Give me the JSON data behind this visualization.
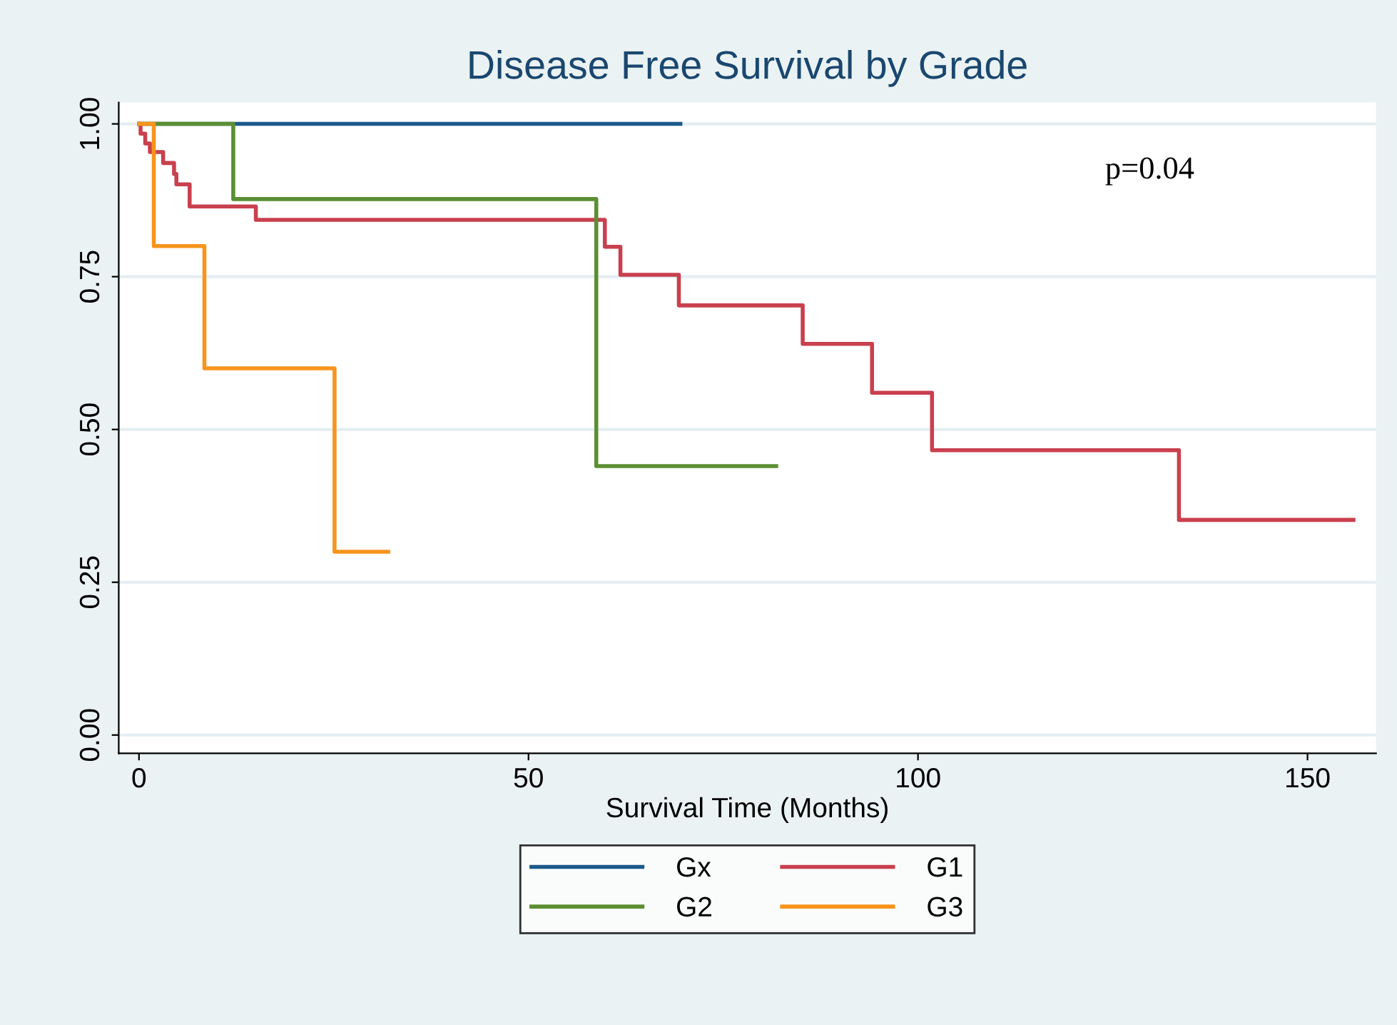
{
  "chart_data": {
    "type": "step",
    "title": "Disease Free Survival by Grade",
    "xlabel": "Survival Time (Months)",
    "xlim": [
      -2.6,
      158.8
    ],
    "xticks": [
      0,
      50,
      100,
      150
    ],
    "ylim": [
      -0.03,
      1.035
    ],
    "yticks": [
      {
        "value": 0,
        "label": "0.00"
      },
      {
        "value": 0.25,
        "label": "0.25"
      },
      {
        "value": 0.5,
        "label": "0.50"
      },
      {
        "value": 0.75,
        "label": "0.75"
      },
      {
        "value": 1,
        "label": "1.00"
      }
    ],
    "grid": "y",
    "legend": "bottom",
    "annotations": [
      "p=0.04"
    ],
    "series": [
      {
        "name": "Gx",
        "color": "#1a5a8a",
        "x": [
          0,
          69.5
        ],
        "values": [
          1.0,
          1.0
        ]
      },
      {
        "name": "G1",
        "color": "#c9404e",
        "x": [
          0,
          0.2,
          0.8,
          1.4,
          3.1,
          4.5,
          4.8,
          6.5,
          15,
          59.8,
          61.8,
          69.3,
          85.2,
          94.1,
          101.8,
          133.5,
          155.9
        ],
        "values": [
          1.0,
          0.984,
          0.968,
          0.954,
          0.936,
          0.918,
          0.901,
          0.865,
          0.843,
          0.799,
          0.753,
          0.703,
          0.64,
          0.56,
          0.466,
          0.352,
          0.352
        ]
      },
      {
        "name": "G2",
        "color": "#5b8f32",
        "x": [
          0,
          12.1,
          58.7,
          81.8
        ],
        "values": [
          1.0,
          0.877,
          0.44,
          0.44
        ]
      },
      {
        "name": "G3",
        "color": "#f7941d",
        "x": [
          0,
          1.9,
          8.4,
          25.1,
          32
        ],
        "values": [
          1.0,
          0.8,
          0.6,
          0.3,
          0.3
        ]
      }
    ]
  }
}
